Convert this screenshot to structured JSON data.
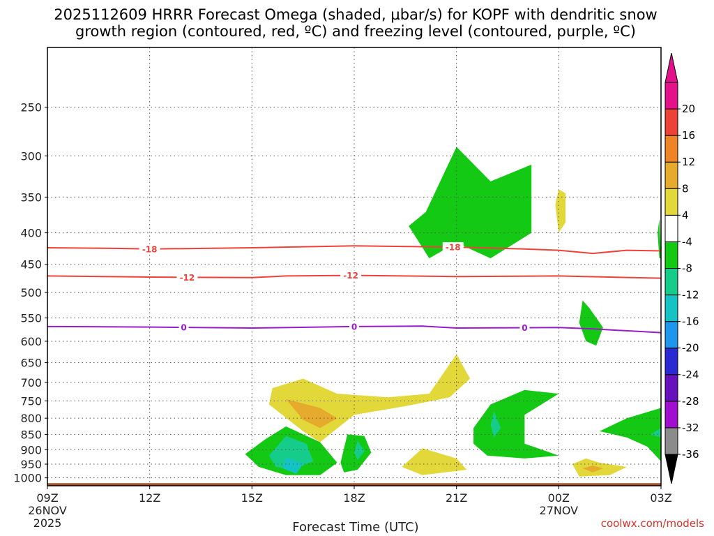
{
  "title_line1": "2025112609 HRRR Forecast Omega (shaded, µbar/s) for KOPF with dendritic snow",
  "title_line2": "growth region (contoured, red, ºC) and freezing level (contoured, purple, ºC)",
  "xlabel": "Forecast Time (UTC)",
  "credit": "coolwx.com/models",
  "chart_data": {
    "type": "contour",
    "x_unit": "hours from 2025-11-26 09Z",
    "x_ticks": [
      {
        "x": 0,
        "label": "09Z",
        "sub1": "26NOV",
        "sub2": "2025"
      },
      {
        "x": 3,
        "label": "12Z"
      },
      {
        "x": 6,
        "label": "15Z"
      },
      {
        "x": 9,
        "label": "18Z"
      },
      {
        "x": 12,
        "label": "21Z"
      },
      {
        "x": 15,
        "label": "00Z",
        "sub1": "27NOV"
      },
      {
        "x": 18,
        "label": "03Z"
      }
    ],
    "xlim": [
      0,
      18
    ],
    "y_scale": "log-pressure",
    "ylabel": "",
    "y_ticks": [
      250,
      300,
      350,
      400,
      450,
      500,
      550,
      600,
      650,
      700,
      750,
      800,
      850,
      900,
      950,
      1000
    ],
    "ylim": [
      200,
      1030
    ],
    "grid": true,
    "colorbar": {
      "colors": [
        "#8b8b8b",
        "#a00ed0",
        "#6611bb",
        "#2a2ad2",
        "#1e96ee",
        "#14c3c3",
        "#16cc8a",
        "#14c914",
        "#ffffff",
        "#e3d83a",
        "#e6aa2c",
        "#ee8424",
        "#ee4238",
        "#e4128a"
      ],
      "labels": [
        "-36",
        "-32",
        "-28",
        "-24",
        "-20",
        "-16",
        "-12",
        "-8",
        "-4",
        "4",
        "8",
        "12",
        "16",
        "20"
      ],
      "under_color": "#000000",
      "over_color": "#e4128a"
    },
    "temperature_contours": [
      {
        "value": -18,
        "label": "-18",
        "color": "#ee4238",
        "points": [
          [
            0,
            423
          ],
          [
            2,
            424
          ],
          [
            3,
            425
          ],
          [
            6,
            423
          ],
          [
            9,
            420
          ],
          [
            12,
            422
          ],
          [
            14,
            425
          ],
          [
            15,
            427
          ],
          [
            16,
            432
          ],
          [
            17,
            427
          ],
          [
            18,
            428
          ]
        ],
        "label_at": [
          3,
          11.9
        ]
      },
      {
        "value": -12,
        "label": "-12",
        "color": "#ee4238",
        "points": [
          [
            0,
            470
          ],
          [
            3,
            472
          ],
          [
            6,
            473
          ],
          [
            7,
            470
          ],
          [
            9,
            469
          ],
          [
            12,
            471
          ],
          [
            15,
            470
          ],
          [
            18,
            474
          ]
        ],
        "label_at": [
          4.1,
          8.9
        ]
      },
      {
        "value": 0,
        "label": "0",
        "color": "#9a1ac8",
        "points": [
          [
            0,
            568
          ],
          [
            3,
            569
          ],
          [
            6,
            571
          ],
          [
            9,
            568
          ],
          [
            11,
            567
          ],
          [
            12,
            571
          ],
          [
            15,
            570
          ],
          [
            16,
            573
          ],
          [
            18,
            581
          ]
        ],
        "label_at": [
          4,
          9,
          14
        ]
      }
    ],
    "omega_regions": [
      {
        "level": "-4 to -8",
        "color": "#14c914",
        "points": [
          [
            11.1,
            370
          ],
          [
            12,
            290
          ],
          [
            13,
            330
          ],
          [
            14.2,
            310
          ],
          [
            14.2,
            400
          ],
          [
            13,
            440
          ],
          [
            12,
            415
          ],
          [
            11.2,
            440
          ],
          [
            10.6,
            390
          ]
        ]
      },
      {
        "level": "4 to 8",
        "color": "#e3d83a",
        "points": [
          [
            15,
            340
          ],
          [
            15.2,
            345
          ],
          [
            15.2,
            385
          ],
          [
            15,
            400
          ],
          [
            14.9,
            360
          ]
        ]
      },
      {
        "level": "-4 to -8",
        "color": "#14c914",
        "points": [
          [
            17.95,
            380
          ],
          [
            18,
            440
          ],
          [
            17.95,
            440
          ],
          [
            17.9,
            400
          ]
        ]
      },
      {
        "level": "-4 to -8",
        "color": "#14c914",
        "points": [
          [
            15.7,
            515
          ],
          [
            15.9,
            530
          ],
          [
            16.3,
            570
          ],
          [
            16.1,
            610
          ],
          [
            15.8,
            600
          ],
          [
            15.6,
            560
          ]
        ]
      },
      {
        "level": "4 to 8",
        "color": "#e3d83a",
        "points": [
          [
            6.6,
            715
          ],
          [
            7.5,
            690
          ],
          [
            8.5,
            730
          ],
          [
            10,
            740
          ],
          [
            11.2,
            730
          ],
          [
            12,
            630
          ],
          [
            12.4,
            690
          ],
          [
            11.8,
            740
          ],
          [
            10.5,
            765
          ],
          [
            9,
            790
          ],
          [
            8,
            875
          ],
          [
            7.5,
            840
          ],
          [
            6.5,
            760
          ]
        ]
      },
      {
        "level": "8 to 12",
        "color": "#e6aa2c",
        "points": [
          [
            7,
            745
          ],
          [
            8,
            770
          ],
          [
            8.5,
            800
          ],
          [
            8,
            830
          ],
          [
            7.5,
            805
          ]
        ]
      },
      {
        "level": "4 to 8",
        "color": "#e3d83a",
        "points": [
          [
            10.4,
            960
          ],
          [
            11,
            895
          ],
          [
            12,
            930
          ],
          [
            12.3,
            970
          ],
          [
            11,
            990
          ]
        ]
      },
      {
        "level": "4 to 8",
        "color": "#e3d83a",
        "points": [
          [
            15.4,
            950
          ],
          [
            15.8,
            930
          ],
          [
            16.2,
            945
          ],
          [
            17,
            960
          ],
          [
            16.5,
            990
          ],
          [
            15.6,
            995
          ]
        ]
      },
      {
        "level": "8 to 12",
        "color": "#e6aa2c",
        "points": [
          [
            15.7,
            965
          ],
          [
            16,
            955
          ],
          [
            16.3,
            965
          ],
          [
            16,
            980
          ]
        ]
      },
      {
        "level": "-4 to -8",
        "color": "#14c914",
        "points": [
          [
            5.8,
            915
          ],
          [
            6.4,
            865
          ],
          [
            7,
            825
          ],
          [
            8,
            875
          ],
          [
            8.5,
            945
          ],
          [
            8,
            990
          ],
          [
            7,
            990
          ],
          [
            6.2,
            960
          ]
        ]
      },
      {
        "level": "-8 to -12",
        "color": "#16cc8a",
        "points": [
          [
            6.5,
            920
          ],
          [
            7,
            855
          ],
          [
            7.6,
            880
          ],
          [
            7.8,
            940
          ],
          [
            7.2,
            970
          ],
          [
            6.7,
            960
          ]
        ]
      },
      {
        "level": "-12 to -16",
        "color": "#14c3c3",
        "points": [
          [
            7,
            925
          ],
          [
            7.5,
            950
          ],
          [
            7.3,
            985
          ],
          [
            6.9,
            965
          ]
        ]
      },
      {
        "level": "-4 to -8",
        "color": "#14c914",
        "points": [
          [
            8.6,
            945
          ],
          [
            8.8,
            850
          ],
          [
            9.3,
            855
          ],
          [
            9.5,
            910
          ],
          [
            9.1,
            970
          ],
          [
            8.7,
            980
          ]
        ]
      },
      {
        "level": "-8 to -12",
        "color": "#16cc8a",
        "points": [
          [
            9,
            910
          ],
          [
            9.1,
            870
          ],
          [
            9.3,
            905
          ],
          [
            9.1,
            935
          ]
        ]
      },
      {
        "level": "-4 to -8",
        "color": "#14c914",
        "points": [
          [
            12.5,
            830
          ],
          [
            13,
            760
          ],
          [
            14,
            720
          ],
          [
            15,
            730
          ],
          [
            14,
            790
          ],
          [
            14,
            880
          ],
          [
            15,
            920
          ],
          [
            14,
            930
          ],
          [
            12.9,
            920
          ],
          [
            12.5,
            880
          ]
        ]
      },
      {
        "level": "-8 to -12",
        "color": "#16cc8a",
        "points": [
          [
            13,
            820
          ],
          [
            13.1,
            780
          ],
          [
            13.3,
            830
          ],
          [
            13.1,
            860
          ]
        ]
      },
      {
        "level": "-4 to -8",
        "color": "#14c914",
        "points": [
          [
            16.2,
            840
          ],
          [
            17,
            800
          ],
          [
            18,
            770
          ],
          [
            18,
            940
          ],
          [
            17.6,
            890
          ],
          [
            17,
            860
          ]
        ]
      },
      {
        "level": "-8 to -12",
        "color": "#16cc8a",
        "points": [
          [
            17.7,
            850
          ],
          [
            18,
            830
          ],
          [
            18,
            860
          ]
        ]
      }
    ],
    "terrain": {
      "color": "#a0522d",
      "pressure": 1020
    }
  }
}
